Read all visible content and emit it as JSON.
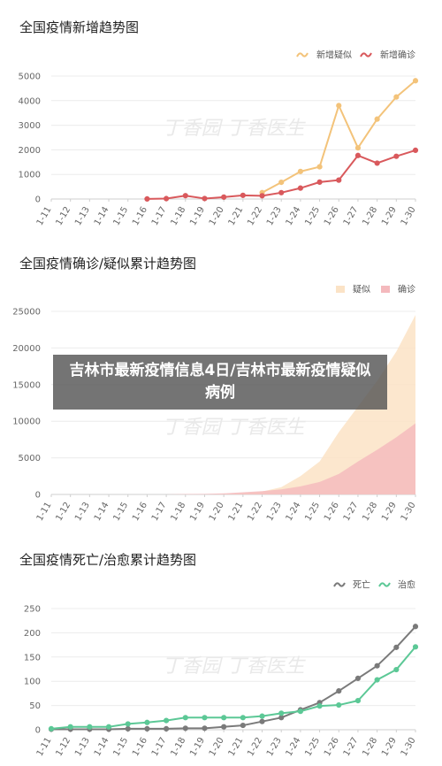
{
  "overlay": {
    "headline": "吉林市最新疫情信息4日/吉林市最新疫情疑似病例"
  },
  "watermark": "丁香园 丁香医生",
  "colors": {
    "orange": "#f3c37a",
    "red": "#d9595c",
    "gray": "#7a7a7a",
    "green": "#5cc896",
    "orange_fill": "#fbe3c6",
    "red_fill": "#f4b9bd",
    "grid": "#ececec"
  },
  "chart_data": [
    {
      "type": "line",
      "title": "全国疫情新增趋势图",
      "categories": [
        "1-11",
        "1-12",
        "1-13",
        "1-14",
        "1-15",
        "1-16",
        "1-17",
        "1-18",
        "1-19",
        "1-20",
        "1-21",
        "1-22",
        "1-23",
        "1-24",
        "1-25",
        "1-26",
        "1-27",
        "1-28",
        "1-29",
        "1-30"
      ],
      "ylim": [
        0,
        5000
      ],
      "yticks": [
        0,
        1000,
        2000,
        3000,
        4000,
        5000
      ],
      "grid": true,
      "legend_position": "top-right",
      "series": [
        {
          "name": "新增疑似",
          "color": "#f3c37a",
          "values": [
            null,
            null,
            null,
            null,
            null,
            null,
            null,
            null,
            null,
            null,
            null,
            260,
            680,
            1120,
            1310,
            3800,
            2080,
            3250,
            4150,
            4810
          ]
        },
        {
          "name": "新增确诊",
          "color": "#d9595c",
          "values": [
            null,
            null,
            null,
            null,
            null,
            4,
            17,
            136,
            20,
            77,
            149,
            131,
            259,
            444,
            688,
            769,
            1771,
            1459,
            1737,
            1982
          ]
        }
      ]
    },
    {
      "type": "area",
      "title": "全国疫情确诊/疑似累计趋势图",
      "categories": [
        "1-11",
        "1-12",
        "1-13",
        "1-14",
        "1-15",
        "1-16",
        "1-17",
        "1-18",
        "1-19",
        "1-20",
        "1-21",
        "1-22",
        "1-23",
        "1-24",
        "1-25",
        "1-26",
        "1-27",
        "1-28",
        "1-29",
        "1-30"
      ],
      "ylim": [
        0,
        25000
      ],
      "yticks": [
        0,
        5000,
        10000,
        15000,
        20000,
        25000
      ],
      "grid": true,
      "legend_position": "top-right",
      "series": [
        {
          "name": "疑似",
          "color": "#fbe3c6",
          "values": [
            0,
            0,
            0,
            0,
            0,
            0,
            0,
            0,
            0,
            50,
            200,
            400,
            1000,
            2500,
            4500,
            8500,
            12000,
            15500,
            19500,
            24500
          ]
        },
        {
          "name": "确诊",
          "color": "#f4b9bd",
          "values": [
            0,
            0,
            0,
            0,
            0,
            0,
            0,
            60,
            80,
            150,
            300,
            450,
            700,
            1100,
            1700,
            2800,
            4500,
            6100,
            7800,
            9700
          ]
        }
      ]
    },
    {
      "type": "line",
      "title": "全国疫情死亡/治愈累计趋势图",
      "categories": [
        "1-11",
        "1-12",
        "1-13",
        "1-14",
        "1-15",
        "1-16",
        "1-17",
        "1-18",
        "1-19",
        "1-20",
        "1-21",
        "1-22",
        "1-23",
        "1-24",
        "1-25",
        "1-26",
        "1-27",
        "1-28",
        "1-29",
        "1-30"
      ],
      "ylim": [
        0,
        250
      ],
      "yticks": [
        0,
        50,
        100,
        150,
        200,
        250
      ],
      "grid": true,
      "legend_position": "top-right",
      "series": [
        {
          "name": "死亡",
          "color": "#7a7a7a",
          "values": [
            1,
            1,
            1,
            1,
            2,
            2,
            2,
            3,
            3,
            6,
            9,
            17,
            25,
            41,
            56,
            80,
            106,
            132,
            170,
            213
          ]
        },
        {
          "name": "治愈",
          "color": "#5cc896",
          "values": [
            2,
            6,
            6,
            6,
            12,
            15,
            19,
            25,
            25,
            25,
            25,
            28,
            34,
            38,
            49,
            51,
            60,
            103,
            124,
            171
          ]
        }
      ]
    }
  ]
}
